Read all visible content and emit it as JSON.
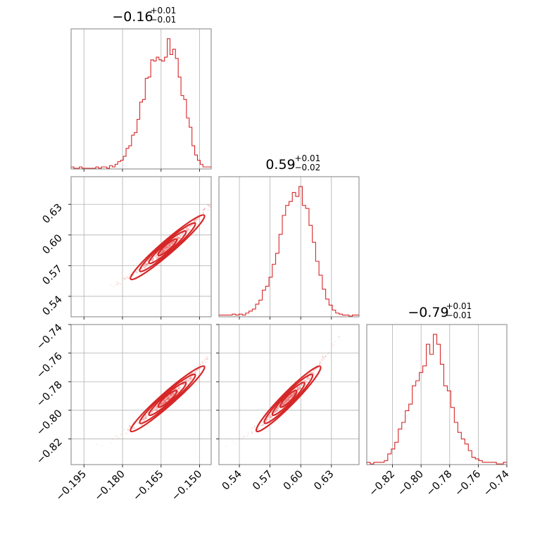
{
  "colors": {
    "accent": "#d62728",
    "points": "#f08080",
    "grid": "#b0b0b0",
    "frame": "#808080"
  },
  "chart_data": {
    "type": "corner",
    "parameters": [
      {
        "median": "−0.16",
        "upper": "+0.01",
        "lower": "−0.01",
        "range": [
          -0.2,
          -0.1455
        ],
        "ticks": [
          -0.195,
          -0.18,
          -0.165,
          -0.15
        ],
        "tick_labels": [
          "−0.195",
          "−0.180",
          "−0.165",
          "−0.150"
        ],
        "center": -0.1625,
        "sigma": 0.0062,
        "slope_scale": 1.0
      },
      {
        "median": "0.59",
        "upper": "+0.01",
        "lower": "−0.02",
        "range": [
          0.52,
          0.657
        ],
        "ticks": [
          0.54,
          0.57,
          0.6,
          0.63
        ],
        "tick_labels": [
          "0.54",
          "0.57",
          "0.60",
          "0.63"
        ],
        "center": 0.588,
        "sigma": 0.0135,
        "slope_scale": 2.18
      },
      {
        "median": "−0.79",
        "upper": "+0.01",
        "lower": "−0.01",
        "range": [
          -0.838,
          -0.74
        ],
        "ticks": [
          -0.82,
          -0.8,
          -0.78,
          -0.76,
          -0.74
        ],
        "tick_labels": [
          "−0.82",
          "−0.80",
          "−0.78",
          "−0.76",
          "−0.74"
        ],
        "center": -0.792,
        "sigma": 0.0098,
        "slope_scale": 1.58
      }
    ],
    "histograms": [
      {
        "edges": [
          -0.2,
          -0.1455
        ],
        "counts": [
          1,
          0,
          0,
          1,
          0,
          0,
          0,
          0,
          0,
          1,
          0,
          1,
          1,
          0,
          2,
          1,
          3,
          5,
          6,
          9,
          15,
          17,
          25,
          27,
          37,
          50,
          52,
          68,
          69,
          82,
          81,
          84,
          82,
          81,
          84,
          98,
          86,
          90,
          83,
          69,
          55,
          52,
          38,
          31,
          17,
          10,
          6,
          3,
          1,
          1,
          1
        ]
      },
      {
        "edges": [
          0.52,
          0.657
        ],
        "counts": [
          1,
          1,
          1,
          1,
          2,
          1,
          2,
          1,
          3,
          5,
          7,
          12,
          16,
          26,
          30,
          39,
          52,
          63,
          82,
          101,
          111,
          115,
          124,
          120,
          130,
          111,
          108,
          91,
          74,
          55,
          41,
          27,
          17,
          11,
          6,
          3,
          2,
          1,
          1,
          0,
          1,
          1
        ]
      },
      {
        "edges": [
          -0.838,
          -0.74
        ],
        "counts": [
          1,
          0,
          1,
          1,
          1,
          2,
          6,
          9,
          13,
          21,
          25,
          32,
          36,
          47,
          50,
          55,
          59,
          72,
          66,
          78,
          72,
          60,
          47,
          44,
          34,
          25,
          19,
          15,
          12,
          8,
          4,
          3,
          2,
          1,
          1,
          1,
          1,
          0,
          0,
          1
        ]
      }
    ]
  }
}
